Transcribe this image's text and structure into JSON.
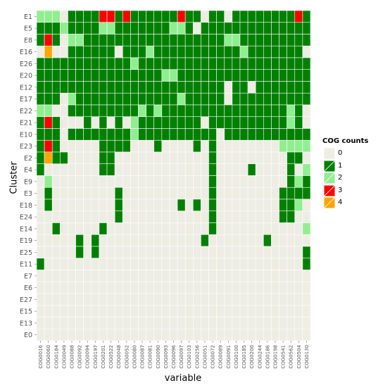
{
  "chart_data": {
    "type": "heatmap",
    "xlabel": "variable",
    "ylabel": "Cluster",
    "legend_title": "COG counts",
    "legend_placement": "right",
    "levels": [
      "0",
      "1",
      "2",
      "3",
      "4"
    ],
    "colors": {
      "0": "#EDEDE4",
      "1": "#008000",
      "2": "#90EE90",
      "3": "#FF0000",
      "4": "#FFA500"
    },
    "background": "#EDEDE4",
    "grid": true,
    "x": [
      "COG0016",
      "COG0060",
      "COG0184",
      "COG0049",
      "COG0088",
      "COG0092",
      "COG0094",
      "COG0197",
      "COG0201",
      "COG0522",
      "COG0048",
      "COG0052",
      "COG0080",
      "COG0087",
      "COG0081",
      "COG0090",
      "COG0093",
      "COG0096",
      "COG0097",
      "COG0103",
      "COG0256",
      "COG0051",
      "COG0072",
      "COG0089",
      "COG0091",
      "COG0100",
      "COG0185",
      "COG0200",
      "COG0244",
      "COG0186",
      "COG0198",
      "COG0541",
      "COG0562",
      "COG0504",
      "COG0130"
    ],
    "y": [
      "E1",
      "E5",
      "E8",
      "E16",
      "E26",
      "E20",
      "E12",
      "E17",
      "E22",
      "E21",
      "E10",
      "E23",
      "E2",
      "E4",
      "E9",
      "E3",
      "E18",
      "E24",
      "E14",
      "E19",
      "E25",
      "E11",
      "E7",
      "E6",
      "E27",
      "E15",
      "E13",
      "E0"
    ],
    "values": [
      [
        2,
        2,
        2,
        0,
        1,
        1,
        1,
        1,
        3,
        3,
        1,
        3,
        1,
        1,
        1,
        1,
        1,
        1,
        3,
        1,
        1,
        0,
        1,
        1,
        0,
        1,
        1,
        1,
        1,
        1,
        1,
        1,
        1,
        3,
        1
      ],
      [
        1,
        1,
        1,
        2,
        1,
        1,
        1,
        1,
        2,
        2,
        1,
        1,
        1,
        1,
        1,
        1,
        1,
        2,
        2,
        1,
        0,
        1,
        1,
        1,
        1,
        1,
        1,
        1,
        1,
        1,
        1,
        1,
        1,
        1,
        1
      ],
      [
        1,
        3,
        1,
        0,
        2,
        2,
        1,
        1,
        1,
        1,
        1,
        1,
        1,
        1,
        1,
        1,
        1,
        1,
        1,
        1,
        1,
        1,
        1,
        1,
        2,
        2,
        1,
        1,
        1,
        1,
        1,
        1,
        1,
        1,
        1
      ],
      [
        0,
        4,
        0,
        0,
        1,
        1,
        1,
        1,
        1,
        1,
        0,
        1,
        1,
        1,
        2,
        1,
        1,
        1,
        1,
        1,
        1,
        1,
        1,
        1,
        1,
        1,
        2,
        1,
        1,
        1,
        1,
        1,
        1,
        1,
        0
      ],
      [
        1,
        1,
        1,
        1,
        1,
        1,
        1,
        1,
        1,
        1,
        1,
        1,
        2,
        1,
        1,
        1,
        1,
        1,
        1,
        1,
        1,
        1,
        1,
        1,
        1,
        1,
        1,
        1,
        1,
        1,
        1,
        1,
        1,
        1,
        1
      ],
      [
        1,
        1,
        1,
        1,
        1,
        1,
        1,
        1,
        1,
        1,
        1,
        1,
        1,
        1,
        1,
        1,
        2,
        2,
        1,
        1,
        1,
        1,
        1,
        1,
        1,
        1,
        1,
        1,
        1,
        1,
        1,
        1,
        1,
        1,
        1
      ],
      [
        1,
        1,
        1,
        1,
        1,
        1,
        1,
        1,
        1,
        1,
        1,
        1,
        1,
        1,
        1,
        1,
        1,
        1,
        1,
        1,
        1,
        1,
        1,
        1,
        0,
        1,
        1,
        0,
        1,
        1,
        1,
        1,
        1,
        1,
        1
      ],
      [
        1,
        1,
        1,
        0,
        2,
        1,
        1,
        1,
        1,
        1,
        1,
        1,
        1,
        1,
        1,
        1,
        1,
        1,
        2,
        1,
        1,
        1,
        1,
        1,
        0,
        1,
        1,
        1,
        1,
        1,
        1,
        1,
        1,
        1,
        1
      ],
      [
        2,
        2,
        0,
        0,
        1,
        1,
        1,
        1,
        1,
        1,
        1,
        1,
        1,
        2,
        1,
        2,
        1,
        1,
        1,
        1,
        1,
        1,
        1,
        1,
        1,
        1,
        1,
        1,
        1,
        1,
        1,
        1,
        2,
        1,
        0
      ],
      [
        1,
        3,
        1,
        0,
        0,
        0,
        1,
        0,
        1,
        0,
        1,
        0,
        2,
        1,
        1,
        1,
        1,
        1,
        1,
        1,
        1,
        0,
        1,
        1,
        1,
        1,
        1,
        1,
        1,
        1,
        1,
        1,
        2,
        1,
        0
      ],
      [
        1,
        1,
        1,
        0,
        1,
        1,
        1,
        1,
        1,
        1,
        1,
        1,
        2,
        1,
        1,
        1,
        1,
        1,
        1,
        1,
        1,
        1,
        1,
        0,
        1,
        1,
        1,
        1,
        1,
        1,
        1,
        1,
        1,
        1,
        1
      ],
      [
        1,
        3,
        1,
        0,
        0,
        0,
        0,
        0,
        1,
        1,
        1,
        1,
        0,
        0,
        0,
        1,
        0,
        0,
        0,
        0,
        1,
        0,
        1,
        0,
        0,
        0,
        0,
        0,
        0,
        0,
        0,
        2,
        2,
        2,
        2
      ],
      [
        1,
        4,
        1,
        1,
        0,
        0,
        0,
        0,
        1,
        1,
        0,
        0,
        0,
        0,
        0,
        0,
        0,
        0,
        0,
        0,
        0,
        0,
        1,
        0,
        0,
        0,
        0,
        0,
        0,
        0,
        0,
        0,
        1,
        1,
        0
      ],
      [
        1,
        0,
        0,
        0,
        0,
        0,
        0,
        0,
        1,
        1,
        0,
        0,
        0,
        0,
        0,
        0,
        0,
        0,
        0,
        0,
        0,
        0,
        1,
        0,
        0,
        0,
        0,
        1,
        0,
        0,
        0,
        0,
        1,
        0,
        2
      ],
      [
        0,
        2,
        0,
        0,
        0,
        0,
        0,
        0,
        0,
        0,
        0,
        0,
        0,
        0,
        0,
        0,
        0,
        0,
        0,
        0,
        0,
        0,
        1,
        0,
        0,
        0,
        0,
        0,
        0,
        0,
        0,
        0,
        1,
        2,
        1
      ],
      [
        0,
        1,
        0,
        0,
        0,
        0,
        0,
        0,
        0,
        0,
        1,
        0,
        0,
        0,
        0,
        0,
        0,
        0,
        0,
        0,
        0,
        0,
        1,
        0,
        0,
        0,
        0,
        0,
        0,
        0,
        0,
        1,
        1,
        1,
        1
      ],
      [
        0,
        1,
        0,
        0,
        0,
        0,
        0,
        0,
        0,
        0,
        1,
        0,
        0,
        0,
        0,
        0,
        0,
        0,
        1,
        0,
        1,
        0,
        1,
        0,
        0,
        0,
        0,
        0,
        0,
        0,
        0,
        1,
        1,
        2,
        0
      ],
      [
        0,
        0,
        0,
        0,
        0,
        0,
        0,
        0,
        0,
        0,
        1,
        0,
        0,
        0,
        0,
        0,
        0,
        0,
        0,
        0,
        0,
        0,
        1,
        0,
        0,
        0,
        0,
        0,
        0,
        0,
        0,
        1,
        1,
        0,
        0
      ],
      [
        0,
        0,
        1,
        0,
        0,
        0,
        0,
        0,
        1,
        0,
        0,
        0,
        0,
        0,
        0,
        0,
        0,
        0,
        0,
        0,
        0,
        0,
        1,
        0,
        0,
        0,
        0,
        0,
        0,
        0,
        0,
        0,
        0,
        0,
        2
      ],
      [
        0,
        0,
        0,
        0,
        0,
        1,
        0,
        1,
        0,
        0,
        0,
        0,
        0,
        0,
        0,
        0,
        0,
        0,
        0,
        0,
        0,
        1,
        0,
        0,
        0,
        0,
        0,
        0,
        0,
        1,
        0,
        0,
        0,
        0,
        0
      ],
      [
        0,
        0,
        0,
        0,
        0,
        1,
        0,
        1,
        0,
        0,
        0,
        0,
        0,
        0,
        0,
        0,
        0,
        0,
        0,
        0,
        0,
        0,
        0,
        0,
        0,
        0,
        0,
        0,
        0,
        0,
        0,
        0,
        0,
        0,
        1
      ],
      [
        1,
        0,
        0,
        0,
        0,
        0,
        0,
        0,
        0,
        0,
        0,
        0,
        0,
        0,
        0,
        0,
        0,
        0,
        0,
        0,
        0,
        0,
        0,
        0,
        0,
        0,
        0,
        0,
        0,
        0,
        0,
        0,
        0,
        0,
        1
      ],
      [
        0,
        0,
        0,
        0,
        0,
        0,
        0,
        0,
        0,
        0,
        0,
        0,
        0,
        0,
        0,
        0,
        0,
        0,
        0,
        0,
        0,
        0,
        0,
        0,
        0,
        0,
        0,
        0,
        0,
        0,
        0,
        0,
        0,
        0,
        0
      ],
      [
        0,
        0,
        0,
        0,
        0,
        0,
        0,
        0,
        0,
        0,
        0,
        0,
        0,
        0,
        0,
        0,
        0,
        0,
        0,
        0,
        0,
        0,
        0,
        0,
        0,
        0,
        0,
        0,
        0,
        0,
        0,
        0,
        0,
        0,
        0
      ],
      [
        0,
        0,
        0,
        0,
        0,
        0,
        0,
        0,
        0,
        0,
        0,
        0,
        0,
        0,
        0,
        0,
        0,
        0,
        0,
        0,
        0,
        0,
        0,
        0,
        0,
        0,
        0,
        0,
        0,
        0,
        0,
        0,
        0,
        0,
        0
      ],
      [
        0,
        0,
        0,
        0,
        0,
        0,
        0,
        0,
        0,
        0,
        0,
        0,
        0,
        0,
        0,
        0,
        0,
        0,
        0,
        0,
        0,
        0,
        0,
        0,
        0,
        0,
        0,
        0,
        0,
        0,
        0,
        0,
        0,
        0,
        0
      ],
      [
        0,
        0,
        0,
        0,
        0,
        0,
        0,
        0,
        0,
        0,
        0,
        0,
        0,
        0,
        0,
        0,
        0,
        0,
        0,
        0,
        0,
        0,
        0,
        0,
        0,
        0,
        0,
        0,
        0,
        0,
        0,
        0,
        0,
        0,
        0
      ],
      [
        0,
        0,
        0,
        0,
        0,
        0,
        0,
        0,
        0,
        0,
        0,
        0,
        0,
        0,
        0,
        0,
        0,
        0,
        0,
        0,
        0,
        0,
        0,
        0,
        0,
        0,
        0,
        0,
        0,
        0,
        0,
        0,
        0,
        0,
        0
      ]
    ]
  }
}
